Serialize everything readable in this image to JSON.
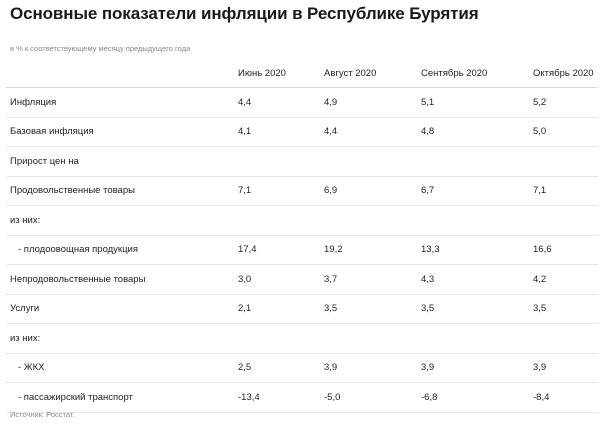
{
  "title": "Основные показатели инфляции в Республике Бурятия",
  "subtitle": "в % к соответствующему месяцу предыдущего года",
  "source": "Источник: Росстат.",
  "chart_data": {
    "type": "table",
    "title": "Основные показатели инфляции в Республике Бурятия",
    "subtitle": "в % к соответствующему месяцу предыдущего года",
    "columns": [
      "Июнь 2020",
      "Август 2020",
      "Сентябрь 2020",
      "Октябрь 2020"
    ],
    "rows": [
      {
        "label": "Инфляция",
        "values": [
          "4,4",
          "4,9",
          "5,1",
          "5,2"
        ]
      },
      {
        "label": "Базовая инфляция",
        "values": [
          "4,1",
          "4,4",
          "4,8",
          "5,0"
        ]
      },
      {
        "label": "Прирост цен на",
        "values": [
          "",
          "",
          "",
          ""
        ]
      },
      {
        "label": "Продовольственные товары",
        "values": [
          "7,1",
          "6,9",
          "6,7",
          "7,1"
        ]
      },
      {
        "label": "из них:",
        "values": [
          "",
          "",
          "",
          ""
        ]
      },
      {
        "label": "- плодоовощная продукция",
        "indent": true,
        "values": [
          "17,4",
          "19,2",
          "13,3",
          "16,6"
        ]
      },
      {
        "label": "Непродовольственные товары",
        "values": [
          "3,0",
          "3,7",
          "4,3",
          "4,2"
        ]
      },
      {
        "label": "Услуги",
        "values": [
          "2,1",
          "3,5",
          "3,5",
          "3,5"
        ]
      },
      {
        "label": "из них:",
        "values": [
          "",
          "",
          "",
          ""
        ]
      },
      {
        "label": "- ЖКХ",
        "indent": true,
        "values": [
          "2,5",
          "3,9",
          "3,9",
          "3,9"
        ]
      },
      {
        "label": "- пассажирский транспорт",
        "indent": true,
        "values": [
          "-13,4",
          "-5,0",
          "-6,8",
          "-8,4"
        ]
      }
    ]
  }
}
